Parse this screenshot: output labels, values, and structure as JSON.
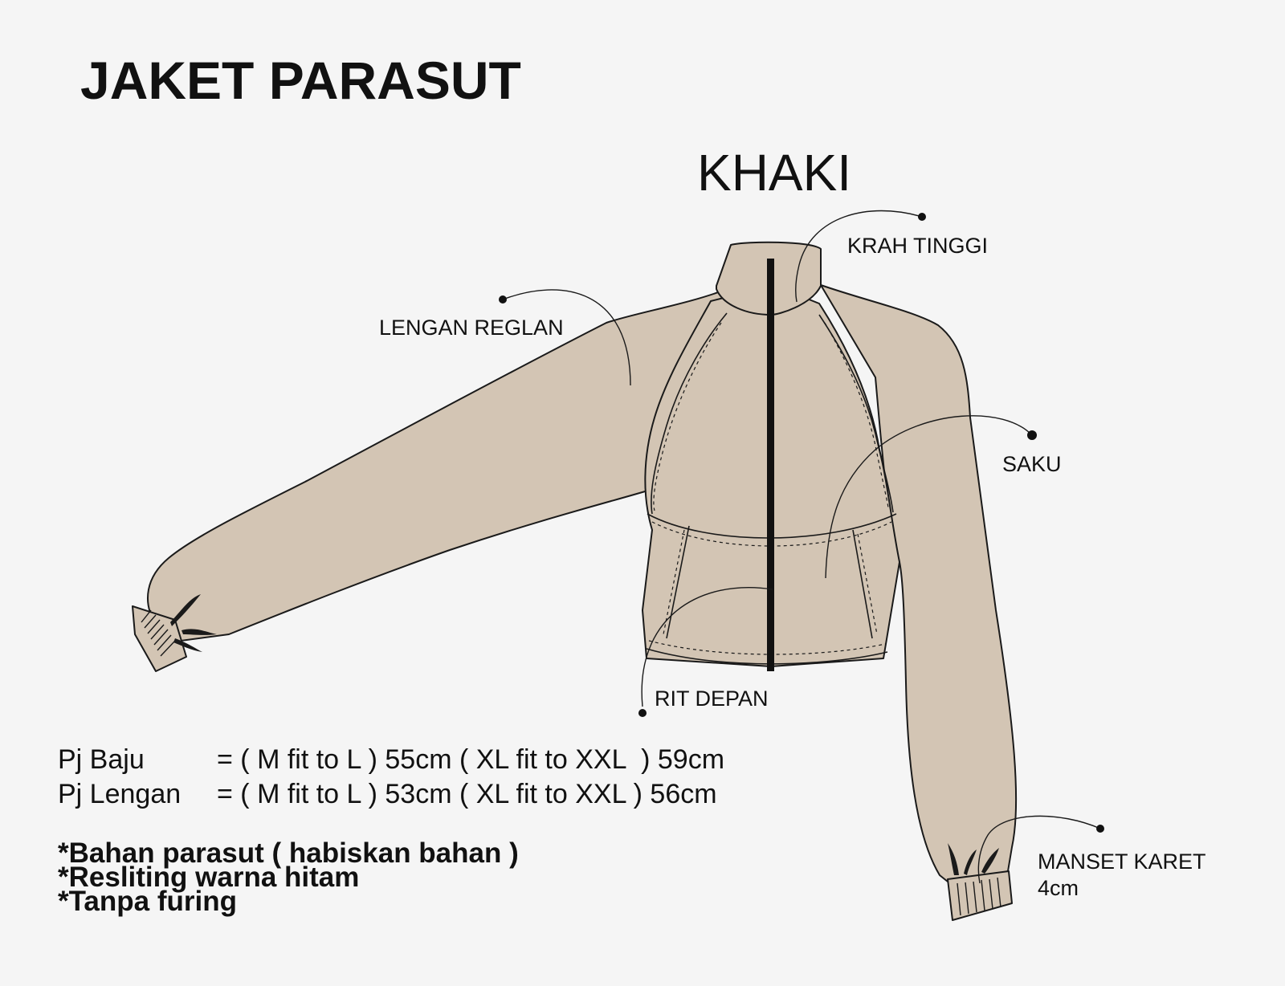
{
  "title": "JAKET PARASUT",
  "color_name": "KHAKI",
  "callouts": {
    "collar": "KRAH TINGGI",
    "sleeve": "LENGAN REGLAN",
    "pocket": "SAKU",
    "zipper": "RIT DEPAN",
    "cuff_line1": "MANSET KARET",
    "cuff_line2": "4cm"
  },
  "specs": [
    {
      "label": "Pj Baju",
      "value": "= ( M fit to L ) 55cm ( XL fit to XXL  ) 59cm"
    },
    {
      "label": "Pj Lengan",
      "value": "= ( M fit to L ) 53cm ( XL fit to XXL ) 56cm"
    }
  ],
  "notes": [
    "*Bahan parasut ( habiskan bahan )",
    "*Resliting warna hitam",
    "*Tanpa furing"
  ],
  "colors": {
    "fabric": "#d3c5b4",
    "outline": "#1a1a1a",
    "zipper": "#111111",
    "background": "#f5f5f5"
  }
}
